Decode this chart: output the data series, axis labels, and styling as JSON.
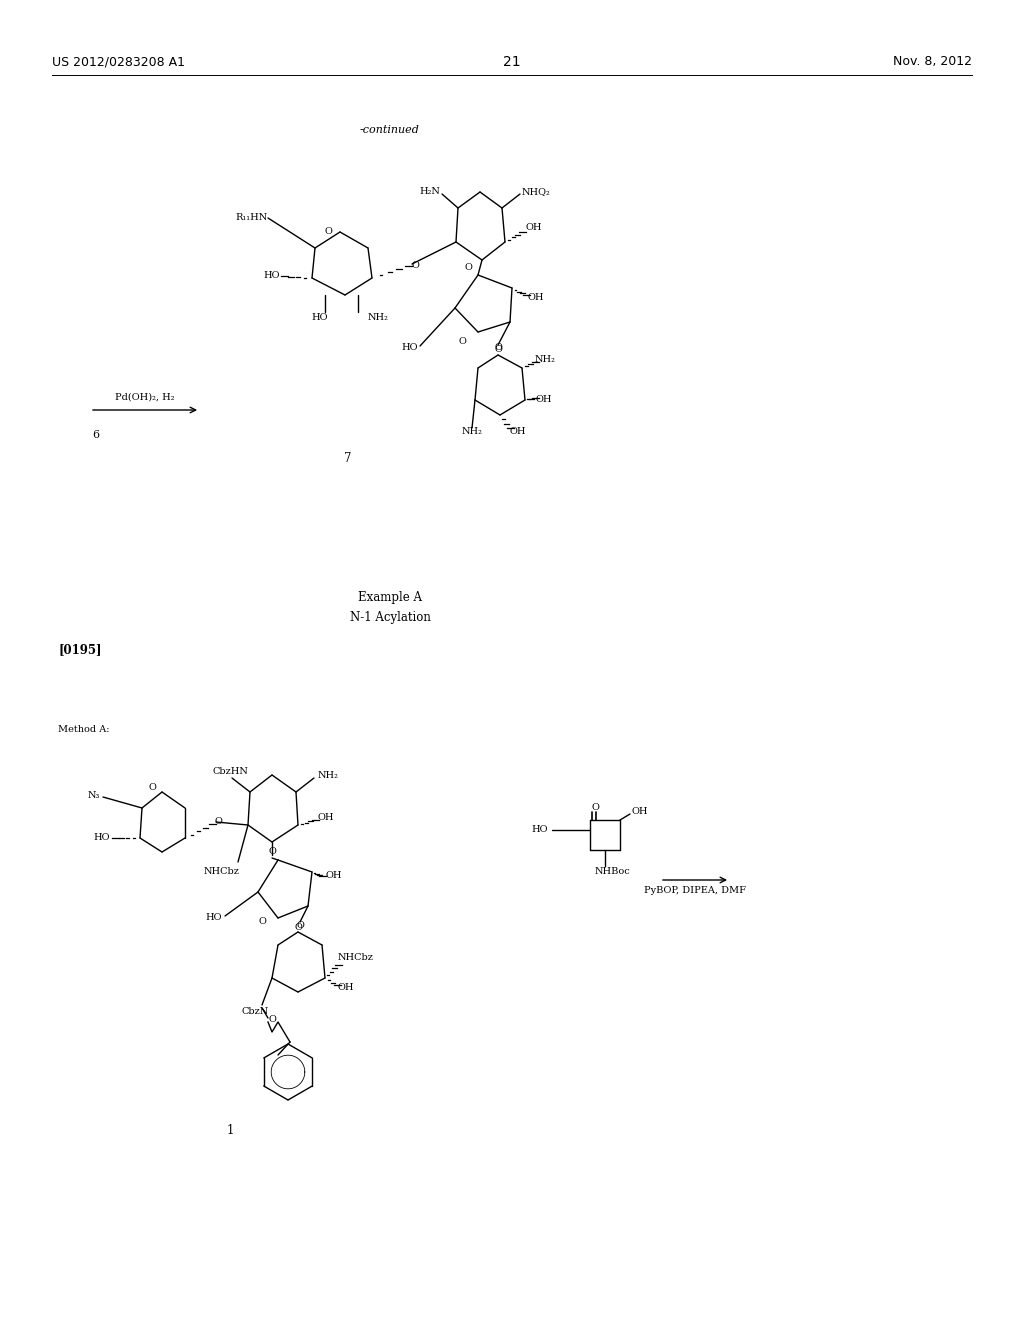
{
  "background_color": "#ffffff",
  "page_width": 10.24,
  "page_height": 13.2,
  "header_left": "US 2012/0283208 A1",
  "header_right": "Nov. 8, 2012",
  "page_number": "21",
  "continued_label": "-continued",
  "section2_title1": "Example A",
  "section2_title2": "N-1 Acylation",
  "section2_para": "[0195]",
  "method_label": "Method A:",
  "reagent2_line1": "PyBOP, DIPEA, DMF",
  "compound1_label": "1",
  "compound7_label": "7",
  "rxn1_label": "6",
  "rxn1_reagent": "Pd(OH)₂, H₂"
}
